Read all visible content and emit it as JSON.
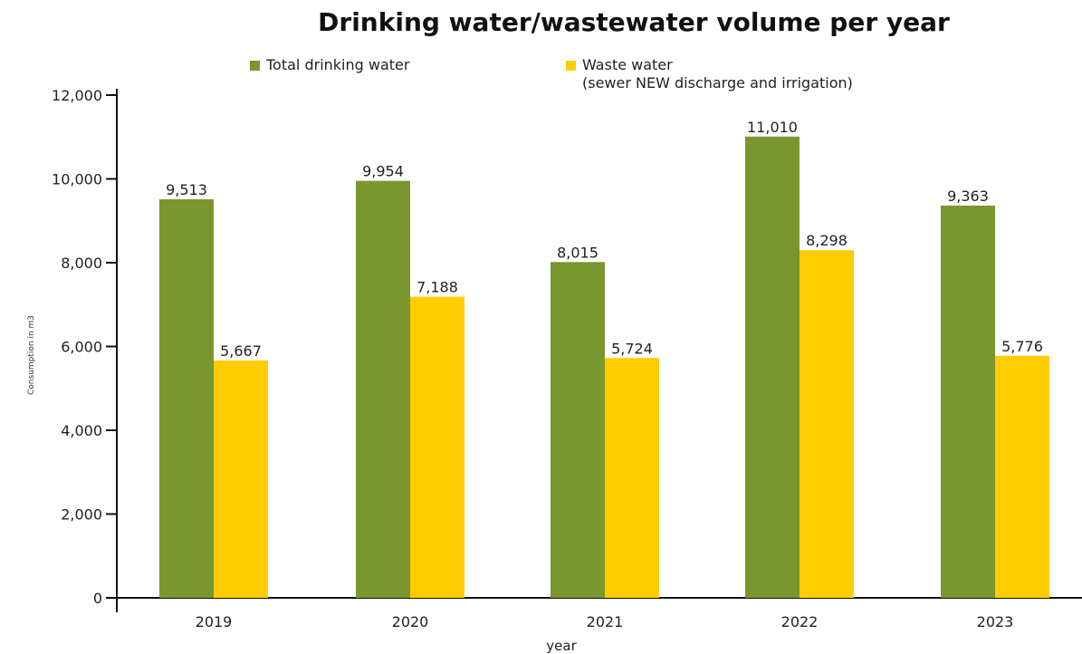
{
  "chart_data": {
    "type": "bar",
    "title": "Drinking water/wastewater volume per year",
    "xlabel": "year",
    "ylabel": "Consumption in m3",
    "categories": [
      "2019",
      "2020",
      "2021",
      "2022",
      "2023"
    ],
    "series": [
      {
        "name": "Total drinking water",
        "color": "#7a962e",
        "values": [
          9513,
          9954,
          8015,
          11010,
          9363
        ],
        "labels": [
          "9,513",
          "9,954",
          "8,015",
          "11,010",
          "9,363"
        ]
      },
      {
        "name": "Waste water",
        "name_sub": "(sewer NEW discharge and irrigation)",
        "color": "#ffcc00",
        "values": [
          5667,
          7188,
          5724,
          8298,
          5776
        ],
        "labels": [
          "5,667",
          "7,188",
          "5,724",
          "8,298",
          "5,776"
        ]
      }
    ],
    "ylim": [
      0,
      12000
    ],
    "yticks": [
      0,
      2000,
      4000,
      6000,
      8000,
      10000,
      12000
    ],
    "ytick_labels": [
      "0",
      "2,000",
      "4,000",
      "6,000",
      "8,000",
      "10,000",
      "12,000"
    ],
    "grid": false,
    "legend_position": "top"
  }
}
